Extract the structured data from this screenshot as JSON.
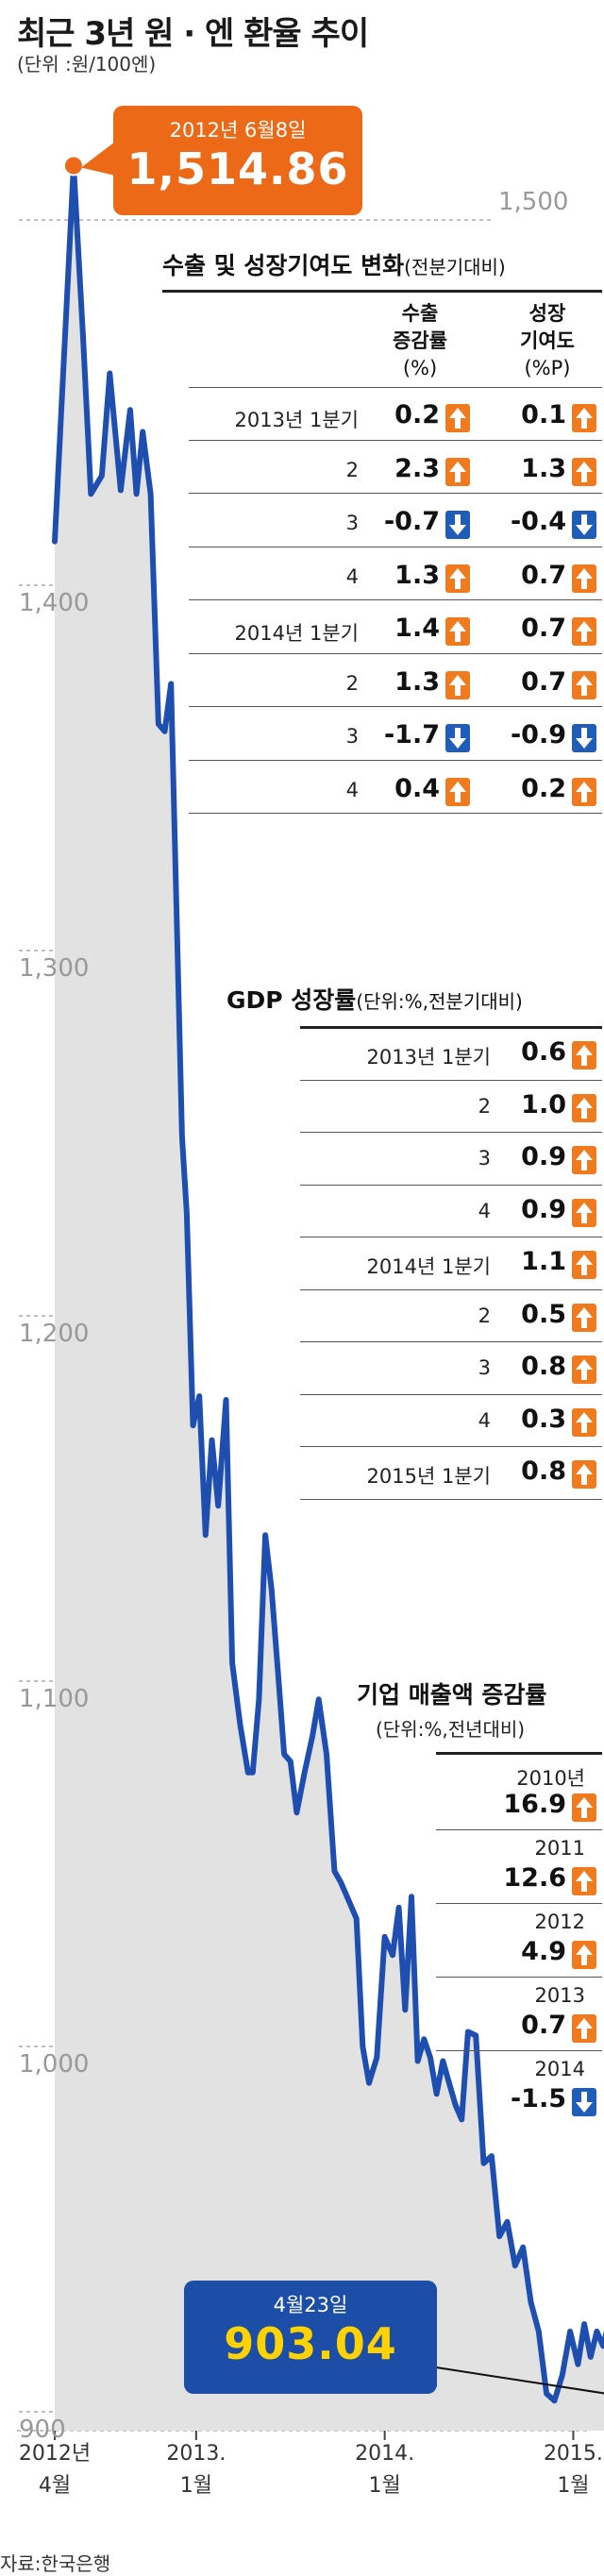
{
  "title": "최근 3년 원 · 엔 환율 추이",
  "unit_note": "(단위 :원/100엔)",
  "source": "자료:한국은행",
  "colors": {
    "line": "#1e4fb0",
    "fill": "#e2e2e2",
    "up": "#f07a1e",
    "down": "#1f5db8",
    "high_box": "#ec6a17",
    "low_box": "#1c4ea8",
    "low_text": "#ffd200"
  },
  "callouts": {
    "high": {
      "date": "2012년 6월8일",
      "value": "1,514.86"
    },
    "low": {
      "date": "4월23일",
      "value": "903.04"
    }
  },
  "chart_data": {
    "type": "line",
    "title": "최근 3년 원 · 엔 환율 추이",
    "ylabel": "(단위 :원/100엔)",
    "ylim": [
      895,
      1520
    ],
    "x_tick_labels": [
      {
        "line1": "2012년",
        "line2": "4월",
        "t": 0
      },
      {
        "line1": "2013.",
        "line2": "1월",
        "t": 9
      },
      {
        "line1": "2014.",
        "line2": "1월",
        "t": 21
      },
      {
        "line1": "2015.",
        "line2": "1월",
        "t": 33
      }
    ],
    "y_ticks": [
      {
        "label": "1,500",
        "value": 1500
      },
      {
        "label": "1,400",
        "value": 1400
      },
      {
        "label": "1,300",
        "value": 1300
      },
      {
        "label": "1,200",
        "value": 1200
      },
      {
        "label": "1,100",
        "value": 1100
      },
      {
        "label": "1,000",
        "value": 1000
      },
      {
        "label": "900",
        "value": 900
      }
    ],
    "series": [
      {
        "t": [
          0,
          1.2,
          1.8,
          2.3,
          3.0,
          3.5,
          4.2,
          4.8,
          5.2,
          5.6,
          6.1,
          6.6,
          7.0,
          7.4,
          7.8,
          8.1,
          8.4,
          8.8,
          9.2,
          9.6,
          10.0,
          10.4,
          10.9,
          11.3,
          11.8,
          12.3,
          12.6,
          13.0,
          13.4,
          13.8,
          14.2,
          14.6,
          15.0,
          15.4,
          15.9,
          16.4,
          16.8,
          17.3,
          17.8,
          18.2,
          18.7,
          19.2,
          19.6,
          20.0,
          20.5,
          21.0,
          21.5,
          21.9,
          22.3,
          22.7,
          23.1,
          23.5,
          23.9,
          24.3,
          24.7,
          25.1,
          25.5,
          25.9,
          26.3,
          26.8,
          27.3,
          27.8,
          28.3,
          28.8,
          29.3,
          29.8,
          30.3,
          30.8,
          31.3,
          31.8,
          32.3,
          32.8,
          33.3,
          33.7,
          34.1,
          34.5,
          34.9,
          35.3,
          35.7,
          36.0,
          36.3,
          36.8
        ],
        "values": [
          1412,
          1514.86,
          1468,
          1425,
          1430,
          1458,
          1426,
          1448,
          1425,
          1442,
          1425,
          1362,
          1360,
          1373,
          1302,
          1249,
          1228,
          1170,
          1178,
          1140,
          1166,
          1148,
          1177,
          1105,
          1088,
          1075,
          1075,
          1095,
          1140,
          1125,
          1103,
          1080,
          1078,
          1064,
          1075,
          1085,
          1095,
          1080,
          1048,
          1045,
          1040,
          1035,
          1000,
          990,
          997,
          1030,
          1025,
          1038,
          1010,
          1041,
          996,
          1002,
          997,
          987,
          996,
          990,
          984,
          980,
          1004,
          1003,
          968,
          970,
          948,
          952,
          940,
          945,
          930,
          922,
          905,
          903.04,
          910,
          922,
          913,
          924,
          915,
          922,
          918,
          925,
          920,
          905,
          903,
          903.04
        ]
      }
    ]
  },
  "tables": {
    "export": {
      "title": "수출 및 성장기여도 변화",
      "subtitle": "(전분기대비)",
      "col1_header": "수출",
      "col1_header2": "증감률",
      "col1_header3": "(%)",
      "col2_header": "성장",
      "col2_header2": "기여도",
      "col2_header3": "(%P)",
      "rows": [
        {
          "label": "2013년 1분기",
          "v1": "0.2",
          "d1": "up",
          "v2": "0.1",
          "d2": "up"
        },
        {
          "label": "2",
          "v1": "2.3",
          "d1": "up",
          "v2": "1.3",
          "d2": "up"
        },
        {
          "label": "3",
          "v1": "-0.7",
          "d1": "down",
          "v2": "-0.4",
          "d2": "down"
        },
        {
          "label": "4",
          "v1": "1.3",
          "d1": "up",
          "v2": "0.7",
          "d2": "up"
        },
        {
          "label": "2014년 1분기",
          "v1": "1.4",
          "d1": "up",
          "v2": "0.7",
          "d2": "up"
        },
        {
          "label": "2",
          "v1": "1.3",
          "d1": "up",
          "v2": "0.7",
          "d2": "up"
        },
        {
          "label": "3",
          "v1": "-1.7",
          "d1": "down",
          "v2": "-0.9",
          "d2": "down"
        },
        {
          "label": "4",
          "v1": "0.4",
          "d1": "up",
          "v2": "0.2",
          "d2": "up"
        }
      ]
    },
    "gdp": {
      "title": "GDP 성장률",
      "subtitle": "(단위:%,전분기대비)",
      "rows": [
        {
          "label": "2013년 1분기",
          "v": "0.6",
          "d": "up"
        },
        {
          "label": "2",
          "v": "1.0",
          "d": "up"
        },
        {
          "label": "3",
          "v": "0.9",
          "d": "up"
        },
        {
          "label": "4",
          "v": "0.9",
          "d": "up"
        },
        {
          "label": "2014년 1분기",
          "v": "1.1",
          "d": "up"
        },
        {
          "label": "2",
          "v": "0.5",
          "d": "up"
        },
        {
          "label": "3",
          "v": "0.8",
          "d": "up"
        },
        {
          "label": "4",
          "v": "0.3",
          "d": "up"
        },
        {
          "label": "2015년 1분기",
          "v": "0.8",
          "d": "up"
        }
      ]
    },
    "sales": {
      "title": "기업 매출액 증감률",
      "subtitle": "(단위:%,전년대비)",
      "rows": [
        {
          "label": "2010년",
          "v": "16.9",
          "d": "up"
        },
        {
          "label": "2011",
          "v": "12.6",
          "d": "up"
        },
        {
          "label": "2012",
          "v": "4.9",
          "d": "up"
        },
        {
          "label": "2013",
          "v": "0.7",
          "d": "up"
        },
        {
          "label": "2014",
          "v": "-1.5",
          "d": "down"
        }
      ]
    }
  }
}
